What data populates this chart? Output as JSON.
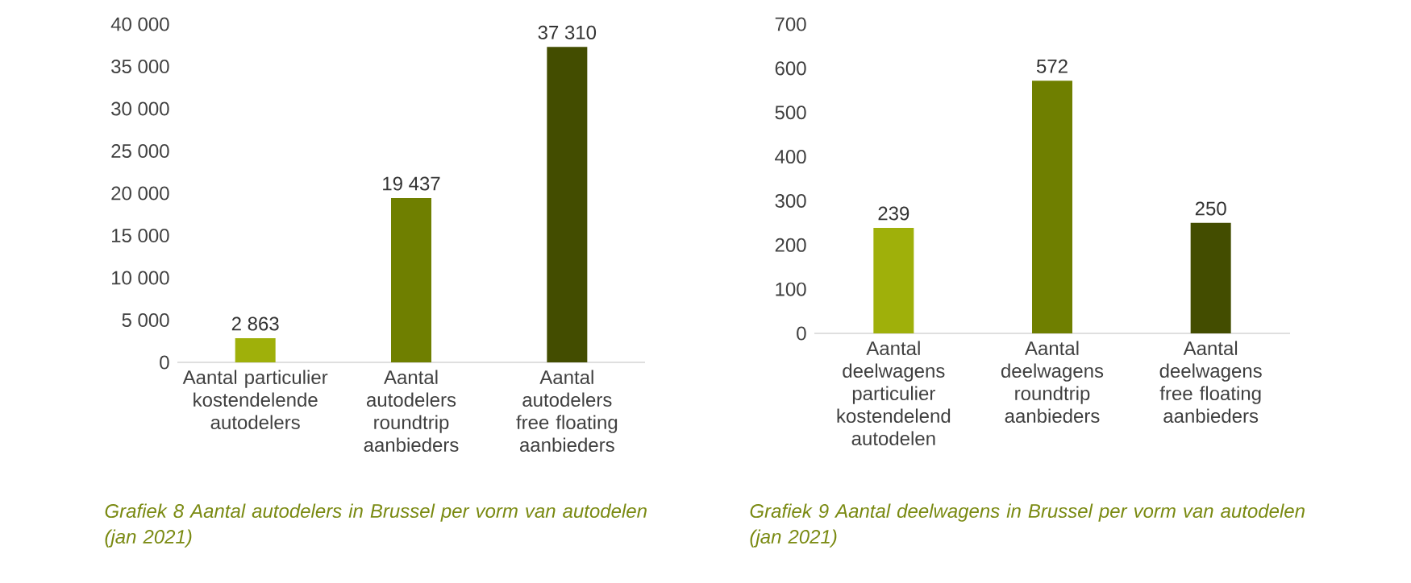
{
  "chart_data": [
    {
      "type": "bar",
      "categories": [
        "Aantal particulier kostendelende autodelers",
        "Aantal autodelers roundtrip aanbieders",
        "Aantal autodelers free floating aanbieders"
      ],
      "values": [
        2863,
        19437,
        37310
      ],
      "colors": [
        "#9fb00a",
        "#6f7f00",
        "#434d00"
      ],
      "value_labels": [
        "2 863",
        "19 437",
        "37 310"
      ],
      "ylim": [
        0,
        40000
      ],
      "yticks": [
        {
          "value": 0,
          "label": "0"
        },
        {
          "value": 5000,
          "label": "5 000"
        },
        {
          "value": 10000,
          "label": "10 000"
        },
        {
          "value": 15000,
          "label": "15 000"
        },
        {
          "value": 20000,
          "label": "20 000"
        },
        {
          "value": 25000,
          "label": "25 000"
        },
        {
          "value": 30000,
          "label": "30 000"
        },
        {
          "value": 35000,
          "label": "35 000"
        },
        {
          "value": 40000,
          "label": "40 000"
        }
      ],
      "annotations": [
        "Grafiek 8 Aantal autodelers in Brussel per vorm van autodelen (jan 2021)"
      ]
    },
    {
      "type": "bar",
      "categories": [
        "Aantal deelwagens particulier kostendelend autodelen",
        "Aantal deelwagens roundtrip aanbieders",
        "Aantal deelwagens free floating aanbieders"
      ],
      "values": [
        239,
        572,
        250
      ],
      "colors": [
        "#9fb00a",
        "#6f7f00",
        "#434d00"
      ],
      "data_labels": true,
      "ylim": [
        0,
        700
      ],
      "yticks": [
        0,
        100,
        200,
        300,
        400,
        500,
        600,
        700
      ],
      "annotations": [
        "Grafiek 9 Aantal deelwagens in Brussel per vorm van autodelen (jan 2021)"
      ]
    }
  ]
}
